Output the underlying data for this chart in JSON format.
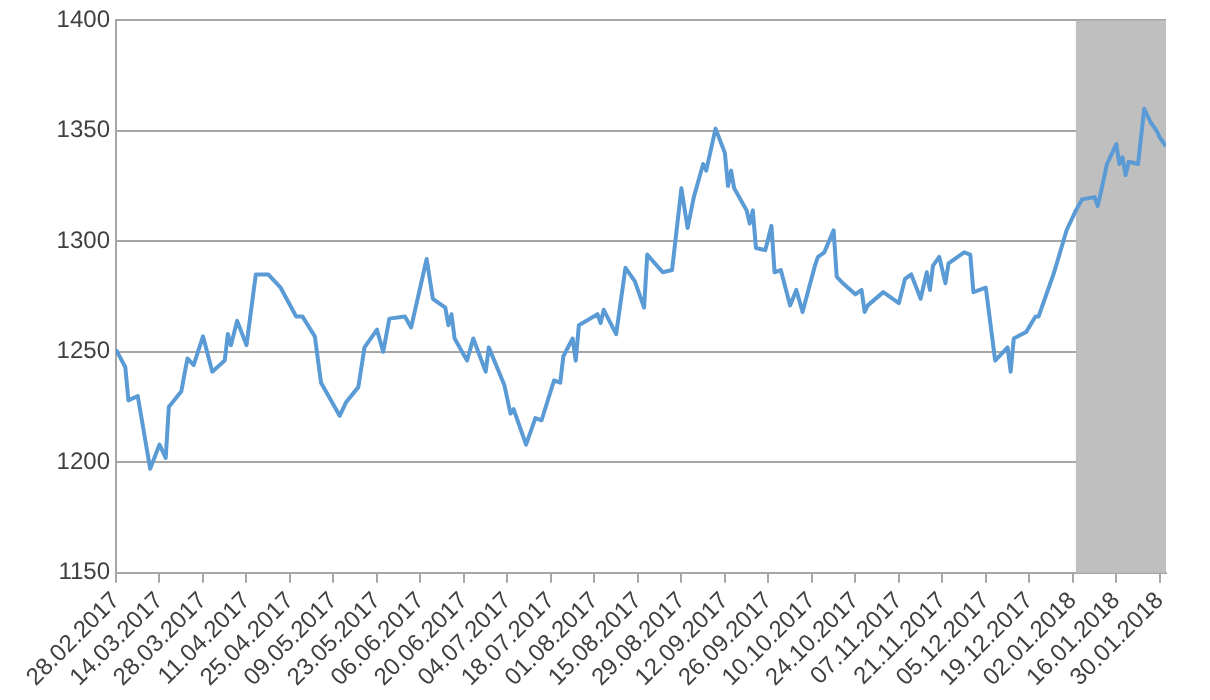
{
  "chart_data": {
    "type": "line",
    "x": [
      "2017-02-28",
      "2017-03-03",
      "2017-03-04",
      "2017-03-07",
      "2017-03-11",
      "2017-03-14",
      "2017-03-16",
      "2017-03-17",
      "2017-03-21",
      "2017-03-23",
      "2017-03-25",
      "2017-03-28",
      "2017-03-31",
      "2017-04-04",
      "2017-04-05",
      "2017-04-06",
      "2017-04-08",
      "2017-04-11",
      "2017-04-14",
      "2017-04-18",
      "2017-04-22",
      "2017-04-27",
      "2017-04-29",
      "2017-05-03",
      "2017-05-05",
      "2017-05-11",
      "2017-05-13",
      "2017-05-17",
      "2017-05-19",
      "2017-05-23",
      "2017-05-25",
      "2017-05-27",
      "2017-06-01",
      "2017-06-03",
      "2017-06-08",
      "2017-06-10",
      "2017-06-14",
      "2017-06-15",
      "2017-06-16",
      "2017-06-17",
      "2017-06-21",
      "2017-06-23",
      "2017-06-27",
      "2017-06-28",
      "2017-07-03",
      "2017-07-05",
      "2017-07-06",
      "2017-07-10",
      "2017-07-13",
      "2017-07-15",
      "2017-07-19",
      "2017-07-21",
      "2017-07-22",
      "2017-07-25",
      "2017-07-26",
      "2017-07-27",
      "2017-08-02",
      "2017-08-03",
      "2017-08-04",
      "2017-08-08",
      "2017-08-11",
      "2017-08-14",
      "2017-08-17",
      "2017-08-18",
      "2017-08-23",
      "2017-08-26",
      "2017-08-29",
      "2017-08-31",
      "2017-09-02",
      "2017-09-05",
      "2017-09-06",
      "2017-09-09",
      "2017-09-12",
      "2017-09-13",
      "2017-09-14",
      "2017-09-15",
      "2017-09-19",
      "2017-09-20",
      "2017-09-21",
      "2017-09-22",
      "2017-09-25",
      "2017-09-27",
      "2017-09-28",
      "2017-09-30",
      "2017-10-03",
      "2017-10-05",
      "2017-10-07",
      "2017-10-11",
      "2017-10-12",
      "2017-10-14",
      "2017-10-17",
      "2017-10-18",
      "2017-10-20",
      "2017-10-24",
      "2017-10-26",
      "2017-10-27",
      "2017-10-28",
      "2017-11-02",
      "2017-11-07",
      "2017-11-09",
      "2017-11-11",
      "2017-11-14",
      "2017-11-16",
      "2017-11-17",
      "2017-11-18",
      "2017-11-20",
      "2017-11-22",
      "2017-11-23",
      "2017-11-28",
      "2017-11-30",
      "2017-12-01",
      "2017-12-05",
      "2017-12-08",
      "2017-12-12",
      "2017-12-13",
      "2017-12-14",
      "2017-12-18",
      "2017-12-21",
      "2017-12-22",
      "2017-12-27",
      "2017-12-31",
      "2018-01-03",
      "2018-01-05",
      "2018-01-09",
      "2018-01-10",
      "2018-01-11",
      "2018-01-13",
      "2018-01-16",
      "2018-01-17",
      "2018-01-18",
      "2018-01-19",
      "2018-01-20",
      "2018-01-23",
      "2018-01-25",
      "2018-01-27",
      "2018-01-29",
      "2018-01-30",
      "2018-02-01"
    ],
    "series": [
      {
        "color": "#5b9bd5",
        "values": [
          1251,
          1243,
          1228,
          1230,
          1197,
          1208,
          1202,
          1225,
          1232,
          1247,
          1244,
          1257,
          1241,
          1246,
          1258,
          1253,
          1264,
          1253,
          1285,
          1285,
          1279,
          1266,
          1266,
          1257,
          1236,
          1221,
          1227,
          1234,
          1252,
          1260,
          1250,
          1265,
          1266,
          1261,
          1292,
          1274,
          1270,
          1262,
          1267,
          1256,
          1246,
          1256,
          1241,
          1252,
          1235,
          1222,
          1224,
          1208,
          1220,
          1219,
          1237,
          1236,
          1248,
          1256,
          1246,
          1262,
          1267,
          1263,
          1269,
          1258,
          1288,
          1282,
          1270,
          1294,
          1286,
          1287,
          1324,
          1306,
          1320,
          1335,
          1332,
          1351,
          1340,
          1325,
          1332,
          1324,
          1314,
          1308,
          1314,
          1297,
          1296,
          1307,
          1286,
          1287,
          1271,
          1278,
          1268,
          1289,
          1293,
          1295,
          1305,
          1284,
          1281,
          1276,
          1278,
          1268,
          1271,
          1277,
          1272,
          1283,
          1285,
          1274,
          1286,
          1278,
          1289,
          1293,
          1281,
          1290,
          1295,
          1294,
          1277,
          1279,
          1246,
          1252,
          1241,
          1256,
          1259,
          1266,
          1266,
          1286,
          1305,
          1314,
          1319,
          1320,
          1316,
          1322,
          1335,
          1344,
          1335,
          1338,
          1330,
          1336,
          1335,
          1360,
          1354,
          1350,
          1347,
          1343
        ]
      }
    ],
    "xlim": [
      "2017-02-28",
      "2018-02-01"
    ],
    "xticks": [
      {
        "value": "2017-02-28",
        "label": "28.02.2017"
      },
      {
        "value": "2017-03-14",
        "label": "14.03.2017"
      },
      {
        "value": "2017-03-28",
        "label": "28.03.2017"
      },
      {
        "value": "2017-04-11",
        "label": "11.04.2017"
      },
      {
        "value": "2017-04-25",
        "label": "25.04.2017"
      },
      {
        "value": "2017-05-09",
        "label": "09.05.2017"
      },
      {
        "value": "2017-05-23",
        "label": "23.05.2017"
      },
      {
        "value": "2017-06-06",
        "label": "06.06.2017"
      },
      {
        "value": "2017-06-20",
        "label": "20.06.2017"
      },
      {
        "value": "2017-07-04",
        "label": "04.07.2017"
      },
      {
        "value": "2017-07-18",
        "label": "18.07.2017"
      },
      {
        "value": "2017-08-01",
        "label": "01.08.2017"
      },
      {
        "value": "2017-08-15",
        "label": "15.08.2017"
      },
      {
        "value": "2017-08-29",
        "label": "29.08.2017"
      },
      {
        "value": "2017-09-12",
        "label": "12.09.2017"
      },
      {
        "value": "2017-09-26",
        "label": "26.09.2017"
      },
      {
        "value": "2017-10-10",
        "label": "10.10.2017"
      },
      {
        "value": "2017-10-24",
        "label": "24.10.2017"
      },
      {
        "value": "2017-11-07",
        "label": "07.11.2017"
      },
      {
        "value": "2017-11-21",
        "label": "21.11.2017"
      },
      {
        "value": "2017-12-05",
        "label": "05.12.2017"
      },
      {
        "value": "2017-12-19",
        "label": "19.12.2017"
      },
      {
        "value": "2018-01-02",
        "label": "02.01.2018"
      },
      {
        "value": "2018-01-16",
        "label": "16.01.2018"
      },
      {
        "value": "2018-01-30",
        "label": "30.01.2018"
      }
    ],
    "ylim": [
      1150,
      1400
    ],
    "yticks": [
      1150,
      1200,
      1250,
      1300,
      1350,
      1400
    ],
    "bands": [
      {
        "axis": "x",
        "from": "2018-01-03",
        "to": "2018-02-01",
        "color": "#bfbfbf"
      }
    ],
    "grid": "y",
    "legend": false,
    "marker": "none",
    "line_style": "solid"
  }
}
